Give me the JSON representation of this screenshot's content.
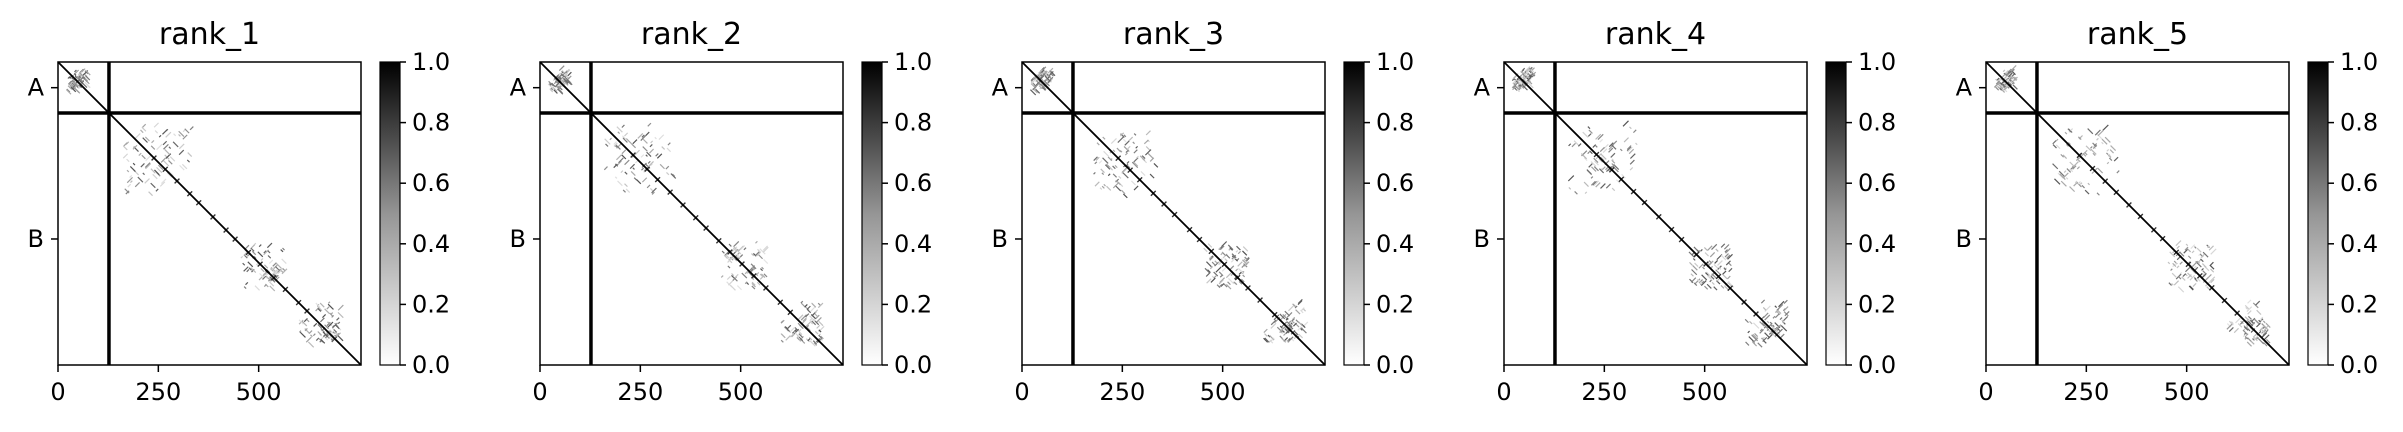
{
  "chart_data": [
    {
      "type": "heatmap",
      "title": "rank_1",
      "x_ticks": [
        "0",
        "250",
        "500"
      ],
      "x_tick_values": [
        0,
        250,
        500
      ],
      "y_ticks": [
        "A",
        "B"
      ],
      "y_tick_values": [
        64,
        441
      ],
      "chain_boundary": 127,
      "length": 755,
      "xlim": [
        0,
        755
      ],
      "ylim": [
        755,
        0
      ],
      "colorbar": {
        "ticks": [
          "0.0",
          "0.2",
          "0.4",
          "0.6",
          "0.8",
          "1.0"
        ],
        "range": [
          0,
          1
        ],
        "colormap": "Greys"
      }
    },
    {
      "type": "heatmap",
      "title": "rank_2",
      "x_ticks": [
        "0",
        "250",
        "500"
      ],
      "x_tick_values": [
        0,
        250,
        500
      ],
      "y_ticks": [
        "A",
        "B"
      ],
      "y_tick_values": [
        64,
        441
      ],
      "chain_boundary": 127,
      "length": 755,
      "xlim": [
        0,
        755
      ],
      "ylim": [
        755,
        0
      ],
      "colorbar": {
        "ticks": [
          "0.0",
          "0.2",
          "0.4",
          "0.6",
          "0.8",
          "1.0"
        ],
        "range": [
          0,
          1
        ],
        "colormap": "Greys"
      }
    },
    {
      "type": "heatmap",
      "title": "rank_3",
      "x_ticks": [
        "0",
        "250",
        "500"
      ],
      "x_tick_values": [
        0,
        250,
        500
      ],
      "y_ticks": [
        "A",
        "B"
      ],
      "y_tick_values": [
        64,
        441
      ],
      "chain_boundary": 127,
      "length": 755,
      "xlim": [
        0,
        755
      ],
      "ylim": [
        755,
        0
      ],
      "colorbar": {
        "ticks": [
          "0.0",
          "0.2",
          "0.4",
          "0.6",
          "0.8",
          "1.0"
        ],
        "range": [
          0,
          1
        ],
        "colormap": "Greys"
      }
    },
    {
      "type": "heatmap",
      "title": "rank_4",
      "x_ticks": [
        "0",
        "250",
        "500"
      ],
      "x_tick_values": [
        0,
        250,
        500
      ],
      "y_ticks": [
        "A",
        "B"
      ],
      "y_tick_values": [
        64,
        441
      ],
      "chain_boundary": 127,
      "length": 755,
      "xlim": [
        0,
        755
      ],
      "ylim": [
        755,
        0
      ],
      "colorbar": {
        "ticks": [
          "0.0",
          "0.2",
          "0.4",
          "0.6",
          "0.8",
          "1.0"
        ],
        "range": [
          0,
          1
        ],
        "colormap": "Greys"
      }
    },
    {
      "type": "heatmap",
      "title": "rank_5",
      "x_ticks": [
        "0",
        "250",
        "500"
      ],
      "x_tick_values": [
        0,
        250,
        500
      ],
      "y_ticks": [
        "A",
        "B"
      ],
      "y_tick_values": [
        64,
        441
      ],
      "chain_boundary": 127,
      "length": 755,
      "xlim": [
        0,
        755
      ],
      "ylim": [
        755,
        0
      ],
      "colorbar": {
        "ticks": [
          "0.0",
          "0.2",
          "0.4",
          "0.6",
          "0.8",
          "1.0"
        ],
        "range": [
          0,
          1
        ],
        "colormap": "Greys"
      }
    }
  ]
}
